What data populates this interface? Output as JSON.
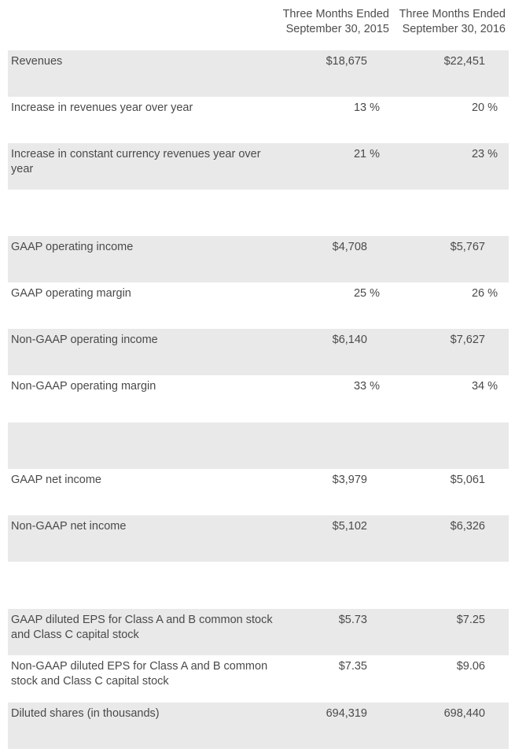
{
  "header": {
    "col1_line1": "Three Months Ended",
    "col1_line2": "September 30, 2015",
    "col2_line1": "Three Months Ended",
    "col2_line2": "September 30, 2016"
  },
  "rows": [
    {
      "label": "Revenues",
      "v1": "$18,675",
      "v2": "$22,451"
    },
    {
      "label": "Increase in revenues year over year",
      "v1": "13 %",
      "v2": "20 %"
    },
    {
      "label": "Increase in constant currency revenues year over year",
      "v1": "21 %",
      "v2": "23 %"
    },
    {
      "label": "",
      "v1": "",
      "v2": ""
    },
    {
      "label": "GAAP operating income",
      "v1": "$4,708",
      "v2": "$5,767"
    },
    {
      "label": "GAAP operating margin",
      "v1": "25 %",
      "v2": "26 %"
    },
    {
      "label": "Non-GAAP operating income",
      "v1": "$6,140",
      "v2": "$7,627"
    },
    {
      "label": "Non-GAAP operating margin",
      "v1": "33 %",
      "v2": "34 %"
    },
    {
      "label": "",
      "v1": "",
      "v2": ""
    },
    {
      "label": "GAAP net income",
      "v1": "$3,979",
      "v2": "$5,061"
    },
    {
      "label": "Non-GAAP net income",
      "v1": "$5,102",
      "v2": "$6,326"
    },
    {
      "label": "",
      "v1": "",
      "v2": ""
    },
    {
      "label": "GAAP diluted EPS for Class A and B common stock and Class C capital stock",
      "v1": "$5.73",
      "v2": "$7.25"
    },
    {
      "label": "Non-GAAP diluted EPS for Class A and B common stock and Class C capital stock",
      "v1": "$7.35",
      "v2": "$9.06"
    },
    {
      "label": "Diluted shares (in thousands)",
      "v1": "694,319",
      "v2": "698,440"
    }
  ]
}
